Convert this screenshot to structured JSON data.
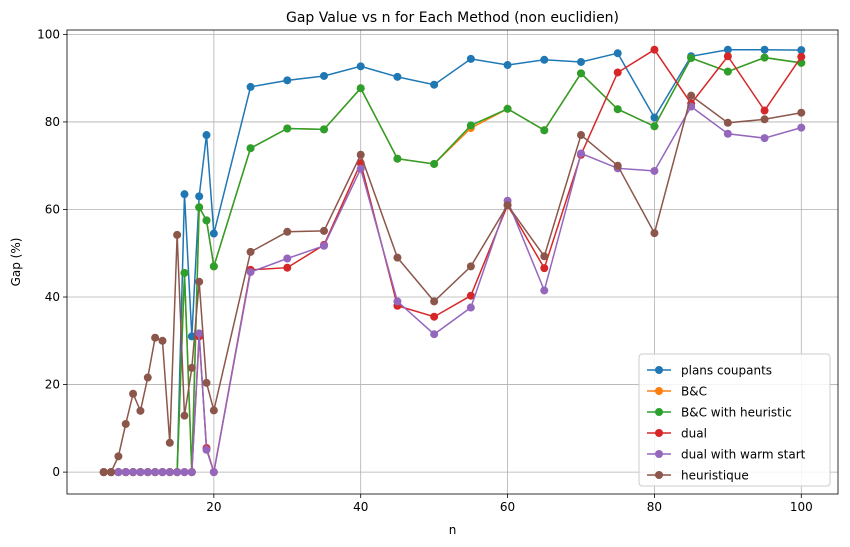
{
  "chart_data": {
    "type": "line",
    "title": "Gap Value vs n for Each Method (non euclidien)",
    "xlabel": "n",
    "ylabel": "Gap (%)",
    "xlim": [
      0,
      105
    ],
    "ylim": [
      -5,
      101
    ],
    "xticks": [
      20,
      40,
      60,
      80,
      100
    ],
    "yticks": [
      0,
      20,
      40,
      60,
      80,
      100
    ],
    "grid": true,
    "legend_position": "bottom-right",
    "x": [
      5,
      6,
      7,
      8,
      9,
      10,
      11,
      12,
      13,
      14,
      15,
      16,
      17,
      18,
      19,
      20,
      25,
      30,
      35,
      40,
      45,
      50,
      55,
      60,
      65,
      70,
      75,
      80,
      85,
      90,
      95,
      100
    ],
    "series": [
      {
        "name": "plans coupants",
        "color": "#1f77b4",
        "values": [
          0,
          0,
          0,
          0,
          0,
          0,
          0,
          0,
          0,
          0,
          0,
          63.5,
          31,
          63,
          77,
          54.5,
          88,
          89.5,
          90.5,
          92.7,
          90.3,
          88.5,
          94.4,
          93,
          94.2,
          93.7,
          95.7,
          81,
          95,
          96.5,
          96.5,
          96.4
        ]
      },
      {
        "name": "B&C",
        "color": "#ff7f0e",
        "values": [
          0,
          0,
          0,
          0,
          0,
          0,
          0,
          0,
          0,
          0,
          0,
          45.5,
          0,
          60.5,
          57.5,
          47,
          74,
          78.5,
          78.3,
          87.7,
          71.6,
          70.4,
          78.6,
          83,
          78.1,
          91.1,
          82.9,
          79,
          94.6,
          91.5,
          94.7,
          93.5
        ]
      },
      {
        "name": "B&C with heuristic",
        "color": "#2ca02c",
        "values": [
          0,
          0,
          0,
          0,
          0,
          0,
          0,
          0,
          0,
          0,
          0,
          45.5,
          0,
          60.5,
          57.5,
          47,
          74,
          78.5,
          78.3,
          87.7,
          71.6,
          70.4,
          79.2,
          83,
          78.1,
          91.1,
          82.9,
          79,
          94.6,
          91.5,
          94.7,
          93.5
        ]
      },
      {
        "name": "dual",
        "color": "#d62728",
        "values": [
          0,
          0,
          0,
          0,
          0,
          0,
          0,
          0,
          0,
          0,
          0,
          0,
          0,
          31,
          5.5,
          0,
          46.2,
          46.7,
          51.9,
          70.6,
          38,
          35.5,
          40.3,
          61,
          46.6,
          72.5,
          91.3,
          96.5,
          84.2,
          95,
          82.6,
          94.9
        ]
      },
      {
        "name": "dual with warm start",
        "color": "#9467bd",
        "values": [
          0,
          0,
          0,
          0,
          0,
          0,
          0,
          0,
          0,
          0,
          0,
          0,
          0,
          31.7,
          5.1,
          0,
          45.7,
          48.8,
          51.7,
          69.3,
          39,
          31.5,
          37.6,
          62,
          41.5,
          72.8,
          69.4,
          68.8,
          83.5,
          77.3,
          76.3,
          78.7
        ]
      },
      {
        "name": "heuristique",
        "color": "#8c564b",
        "values": [
          0,
          0,
          3.6,
          11,
          17.9,
          14,
          21.6,
          30.7,
          30,
          6.7,
          54.2,
          12.9,
          23.8,
          43.5,
          20.4,
          14.1,
          50.3,
          54.9,
          55.1,
          72.5,
          49,
          39,
          47,
          61,
          49.3,
          77,
          70,
          54.6,
          86,
          79.8,
          80.6,
          82.1
        ]
      }
    ]
  }
}
